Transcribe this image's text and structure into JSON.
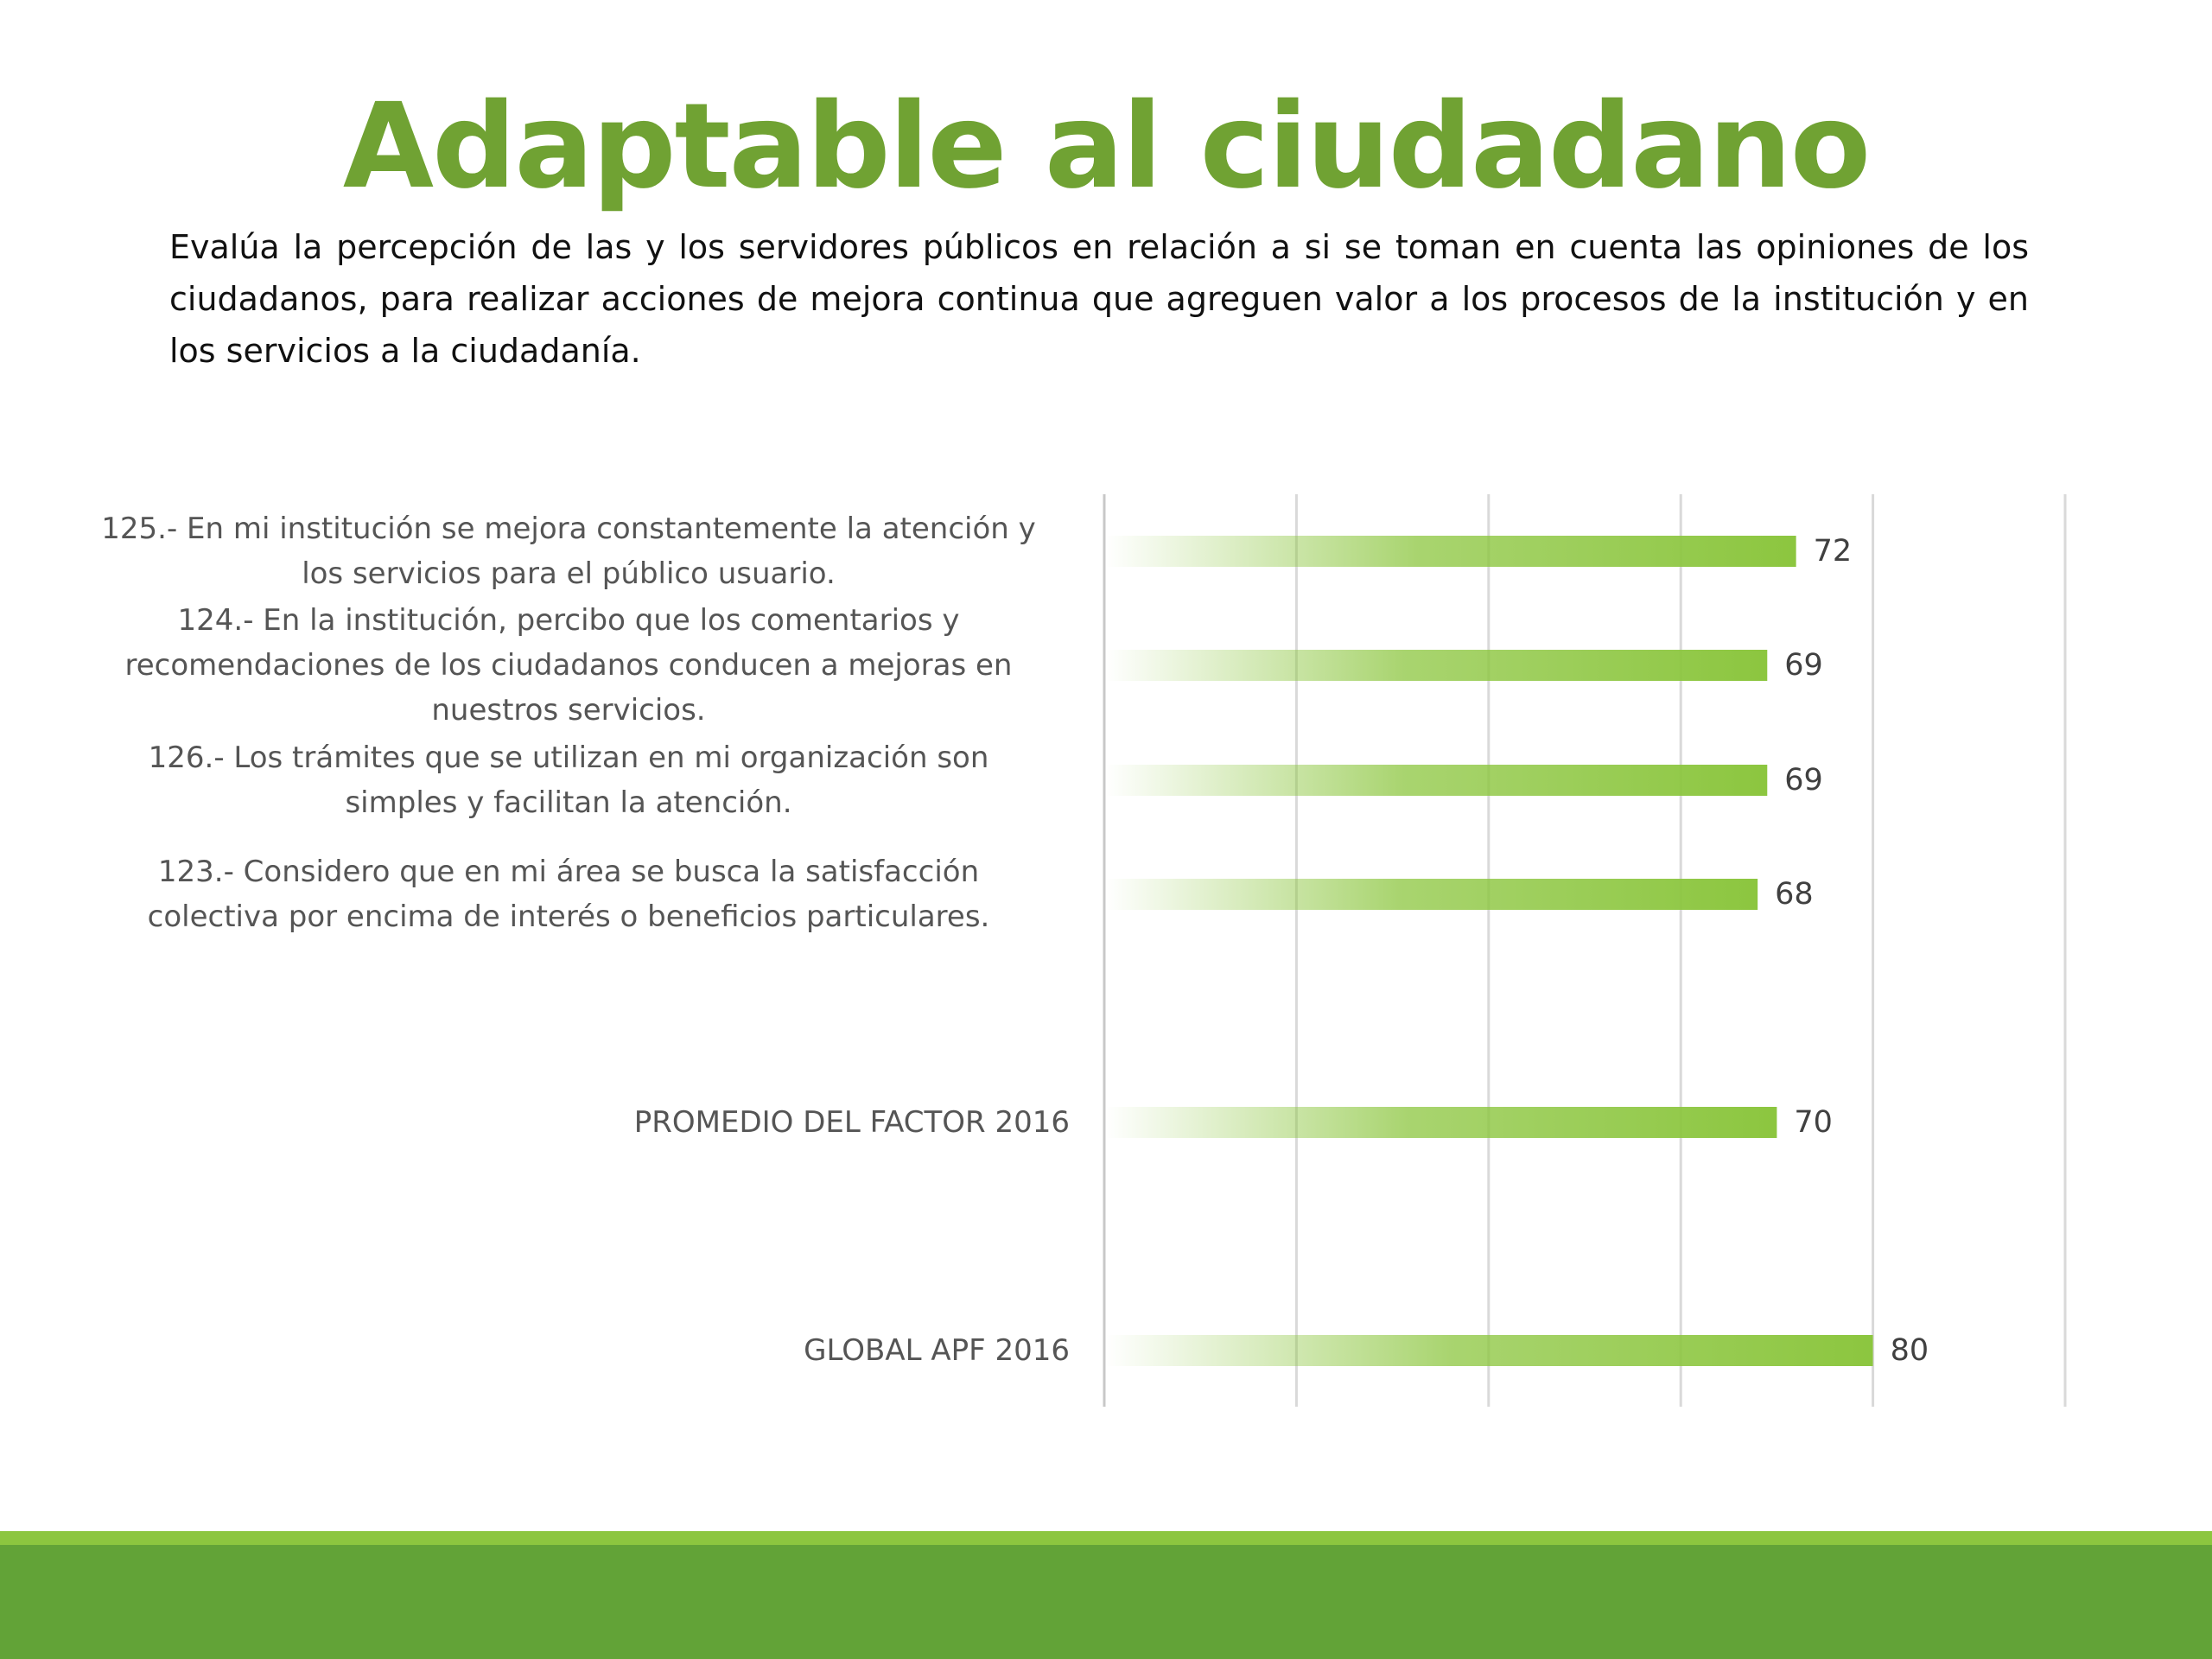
{
  "title": "Adaptable al ciudadano",
  "description": "Evalúa la percepción de las y los servidores públicos en relación a si se toman en cuenta las opiniones de los ciudadanos, para realizar acciones de mejora continua que agreguen valor a los procesos de la institución y en los servicios a la ciudadanía.",
  "colors": {
    "title": "#70a233",
    "bar": "#8cc63f",
    "footer_light": "#8cc63f",
    "footer_dark": "#62a337"
  },
  "chart_data": {
    "type": "bar",
    "orientation": "horizontal",
    "categories": [
      [
        "125.- En mi institución se mejora constantemente la atención y",
        "los servicios para el público usuario."
      ],
      [
        "124.- En la institución, percibo que los comentarios y",
        "recomendaciones de los ciudadanos conducen a mejoras en",
        "nuestros servicios."
      ],
      [
        "126.- Los trámites que se utilizan en mi organización son",
        "simples y facilitan la atención."
      ],
      [
        "123.- Considero que en mi área se busca la satisfacción",
        "colectiva por encima de interés o beneficios particulares."
      ],
      [
        "PROMEDIO DEL FACTOR   2016"
      ],
      [
        "GLOBAL APF   2016"
      ]
    ],
    "values": [
      72,
      69,
      69,
      68,
      70,
      80
    ],
    "data_labels": [
      "72",
      "69",
      "69",
      "68",
      "70",
      "80"
    ],
    "xlim": [
      0,
      100
    ],
    "grid": true,
    "title": "",
    "xlabel": "",
    "ylabel": ""
  }
}
